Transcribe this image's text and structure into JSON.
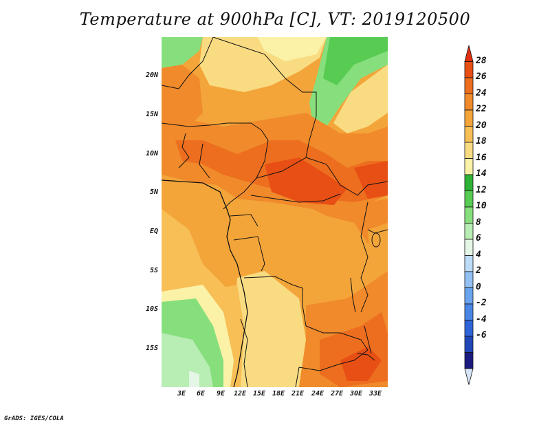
{
  "title": "Temperature at 900hPa [C], VT: 2019120500",
  "credit": "GrADS: IGES/COLA",
  "lat_labels": [
    "20N",
    "15N",
    "10N",
    "5N",
    "EQ",
    "5S",
    "10S",
    "15S"
  ],
  "lon_labels": [
    "3E",
    "6E",
    "9E",
    "12E",
    "15E",
    "18E",
    "21E",
    "24E",
    "27E",
    "30E",
    "33E"
  ],
  "colorbar": {
    "labels": [
      "28",
      "26",
      "24",
      "22",
      "20",
      "18",
      "16",
      "14",
      "12",
      "10",
      "8",
      "6",
      "4",
      "2",
      "0",
      "-2",
      "-4",
      "-6"
    ],
    "colors": [
      "#d8e4f7",
      "#1b1b7f",
      "#2046b8",
      "#2f63d8",
      "#4a86e6",
      "#6aa3ee",
      "#93c1f4",
      "#bcdcf8",
      "#e4f6e6",
      "#b8edb3",
      "#86df7c",
      "#57cb52",
      "#2fb336",
      "#fbf2a8",
      "#f9dc82",
      "#f7bf56",
      "#f3a53a",
      "#f08a2b",
      "#ed6e1f",
      "#e84f14",
      "#e02f11"
    ]
  },
  "map_colors": {
    "c16": "#fbf2a8",
    "c18": "#f9dc82",
    "c20": "#f7bf56",
    "c22": "#f3a53a",
    "c24": "#f08a2b",
    "c26": "#ed6e1f",
    "c28": "#e84f14",
    "g12": "#b8edb3",
    "g14": "#86df7c",
    "g16": "#57cb52",
    "g18": "#2fb336",
    "b10": "#e4f6e6",
    "b8": "#bcdcf8"
  }
}
